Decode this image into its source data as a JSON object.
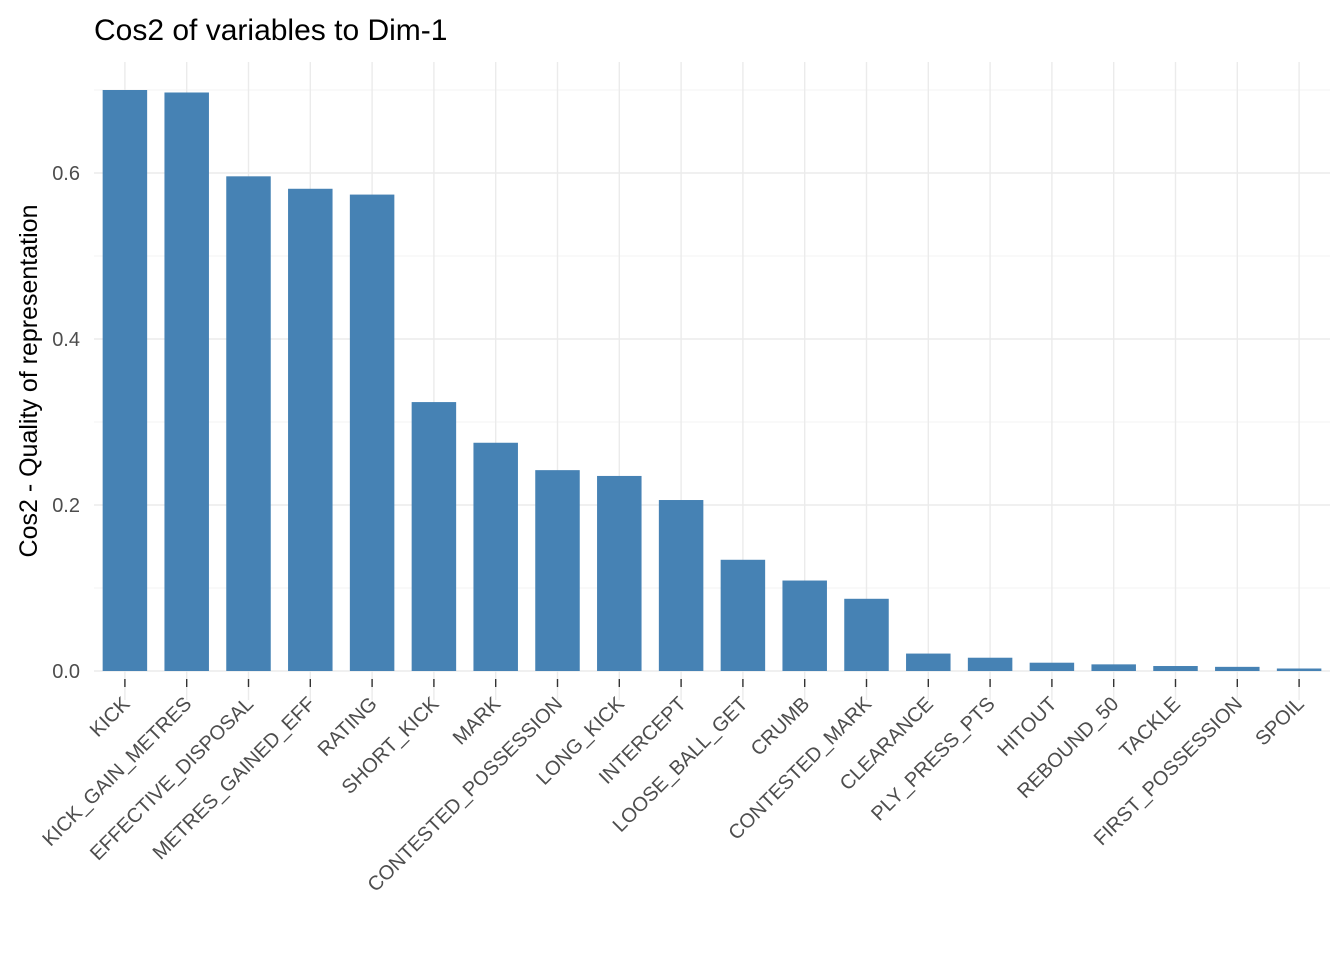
{
  "chart_data": {
    "type": "bar",
    "title": "Cos2 of variables to Dim-1",
    "xlabel": "",
    "ylabel": "Cos2 - Quality of representation",
    "ylim": [
      0,
      0.7
    ],
    "yticks": [
      "0.0",
      "0.2",
      "0.4",
      "0.6"
    ],
    "ytick_values": [
      0.0,
      0.2,
      0.4,
      0.6
    ],
    "grid": true,
    "bar_color": "#4682B4",
    "categories": [
      "KICK",
      "KICK_GAIN_METRES",
      "EFFECTIVE_DISPOSAL",
      "METRES_GAINED_EFF",
      "RATING",
      "SHORT_KICK",
      "MARK",
      "CONTESTED_POSSESSION",
      "LONG_KICK",
      "INTERCEPT",
      "LOOSE_BALL_GET",
      "CRUMB",
      "CONTESTED_MARK",
      "CLEARANCE",
      "PLY_PRESS_PTS",
      "HITOUT",
      "REBOUND_50",
      "TACKLE",
      "FIRST_POSSESSION",
      "SPOIL"
    ],
    "values": [
      0.7,
      0.697,
      0.596,
      0.581,
      0.574,
      0.324,
      0.275,
      0.242,
      0.235,
      0.206,
      0.134,
      0.109,
      0.087,
      0.021,
      0.016,
      0.01,
      0.008,
      0.006,
      0.005,
      0.003
    ]
  }
}
